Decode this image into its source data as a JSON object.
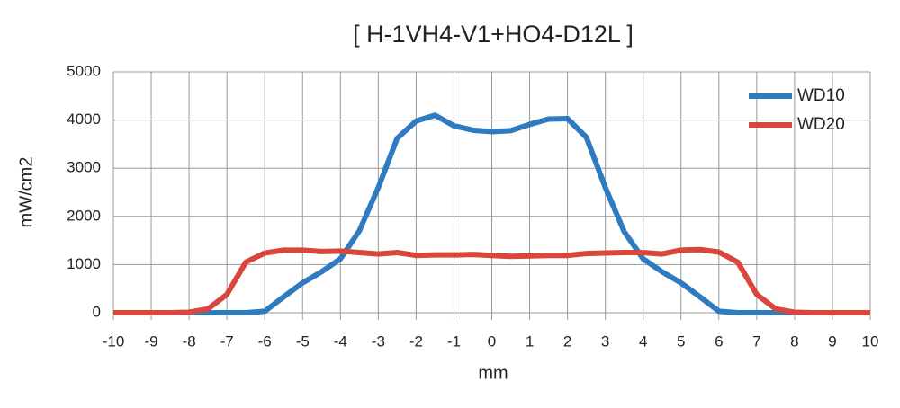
{
  "chart_data": {
    "type": "line",
    "title": "[ H-1VH4-V1+HO4-D12L ]",
    "x_label": "mm",
    "y_label": "mW/cm2",
    "x": [
      -10,
      -9.5,
      -9,
      -8.5,
      -8,
      -7.5,
      -7,
      -6.5,
      -6,
      -5.5,
      -5,
      -4.5,
      -4,
      -3.5,
      -3,
      -2.5,
      -2,
      -1.5,
      -1,
      -0.5,
      0,
      0.5,
      1,
      1.5,
      2,
      2.5,
      3,
      3.5,
      4,
      4.5,
      5,
      5.5,
      6,
      6.5,
      7,
      7.5,
      8,
      8.5,
      9,
      9.5,
      10
    ],
    "series": [
      {
        "name": "WD10",
        "color": "#2e7bbf",
        "values": [
          0,
          0,
          0,
          0,
          0,
          0,
          0,
          0,
          30,
          330,
          620,
          850,
          1120,
          1700,
          2600,
          3620,
          3980,
          4100,
          3880,
          3790,
          3760,
          3780,
          3910,
          4020,
          4030,
          3640,
          2600,
          1680,
          1120,
          850,
          620,
          330,
          30,
          0,
          0,
          0,
          0,
          0,
          0,
          0,
          0
        ]
      },
      {
        "name": "WD20",
        "color": "#d9463c",
        "values": [
          0,
          0,
          0,
          0,
          10,
          80,
          380,
          1050,
          1240,
          1300,
          1300,
          1270,
          1280,
          1250,
          1220,
          1250,
          1190,
          1200,
          1200,
          1210,
          1190,
          1170,
          1180,
          1190,
          1190,
          1230,
          1240,
          1250,
          1250,
          1220,
          1300,
          1310,
          1260,
          1050,
          380,
          80,
          10,
          0,
          0,
          0,
          0
        ]
      }
    ],
    "xlim": [
      -10,
      10
    ],
    "xticks": [
      -10,
      -9,
      -8,
      -7,
      -6,
      -5,
      -4,
      -3,
      -2,
      -1,
      0,
      1,
      2,
      3,
      4,
      5,
      6,
      7,
      8,
      9,
      10
    ],
    "ylim": [
      0,
      5000
    ],
    "yticks": [
      0,
      1000,
      2000,
      3000,
      4000,
      5000
    ],
    "grid": true,
    "legend": "upper-right"
  }
}
